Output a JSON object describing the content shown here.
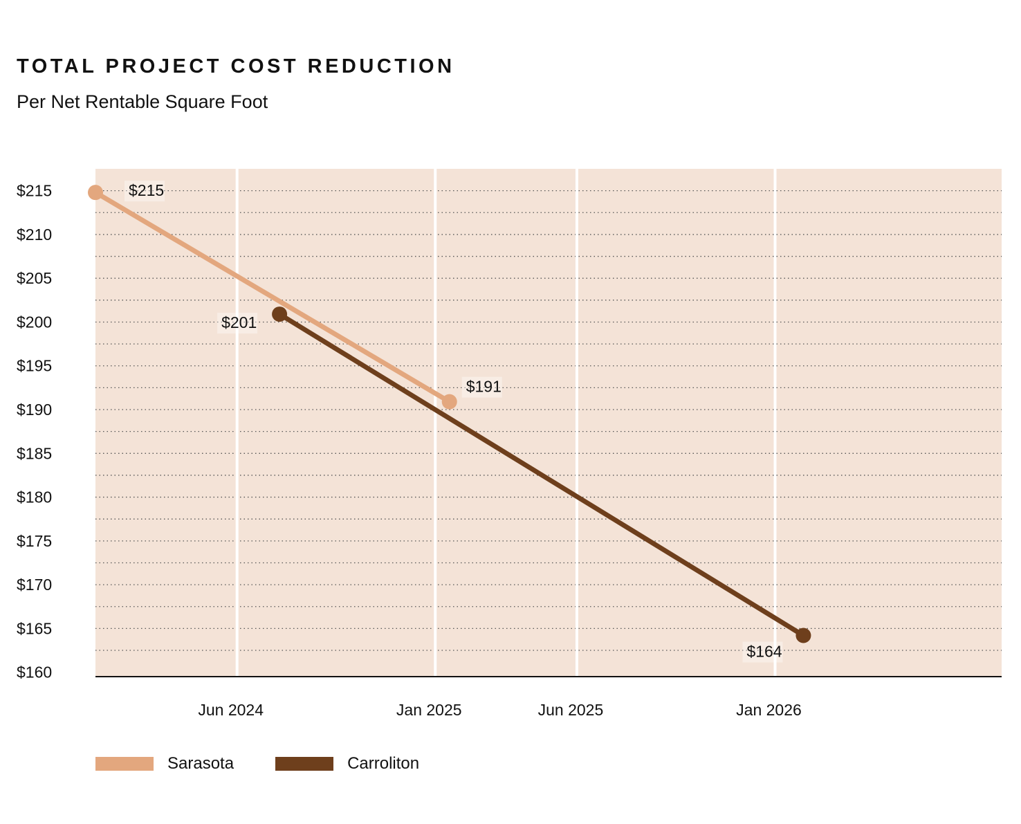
{
  "chart_data": {
    "type": "line",
    "title": "TOTAL PROJECT COST REDUCTION",
    "subtitle": "Per Net Rentable Square Foot",
    "xlabel": "",
    "ylabel": "",
    "ylim": [
      160,
      215
    ],
    "y_ticks": [
      "$215",
      "$210",
      "$205",
      "$200",
      "$195",
      "$190",
      "$185",
      "$180",
      "$175",
      "$170",
      "$165",
      "$160"
    ],
    "y_tick_values": [
      215,
      210,
      205,
      200,
      195,
      190,
      185,
      180,
      175,
      170,
      165,
      160
    ],
    "x_range_months": [
      0,
      32
    ],
    "x_ticks": [
      {
        "label": "Jun 2024",
        "month": 5
      },
      {
        "label": "Jan 2025",
        "month": 12
      },
      {
        "label": "Jun 2025",
        "month": 17
      },
      {
        "label": "Jan 2026",
        "month": 24
      }
    ],
    "series": [
      {
        "name": "Sarasota",
        "color": "#E3A77E",
        "points": [
          {
            "month": 0,
            "value": 214.8,
            "label": "$215"
          },
          {
            "month": 12.5,
            "value": 190.9,
            "label": "$191"
          }
        ]
      },
      {
        "name": "Carroliton",
        "color": "#6E3F1C",
        "points": [
          {
            "month": 6.5,
            "value": 200.9,
            "label": "$201"
          },
          {
            "month": 25,
            "value": 164.2,
            "label": "$164"
          }
        ]
      }
    ],
    "background_color": "#F4E3D7",
    "grid": "dotted horizontal, white vertical at x ticks"
  }
}
